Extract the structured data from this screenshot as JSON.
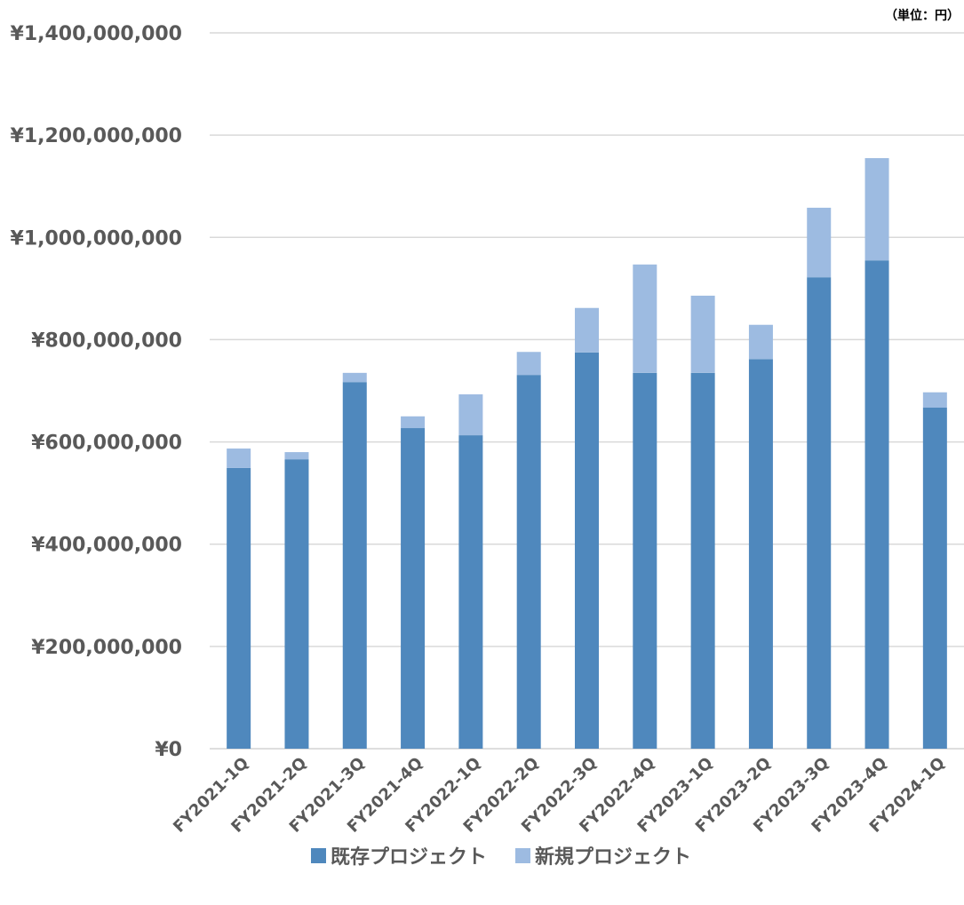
{
  "chart_data": {
    "type": "bar",
    "stacked": true,
    "unit_note": "（単位：円）",
    "categories": [
      "FY2021-1Q",
      "FY2021-2Q",
      "FY2021-3Q",
      "FY2021-4Q",
      "FY2022-1Q",
      "FY2022-2Q",
      "FY2022-3Q",
      "FY2022-4Q",
      "FY2023-1Q",
      "FY2023-2Q",
      "FY2023-3Q",
      "FY2023-4Q",
      "FY2024-1Q"
    ],
    "series": [
      {
        "name": "既存プロジェクト",
        "color": "#4F88BD",
        "values": [
          549000000,
          566000000,
          717000000,
          627000000,
          613000000,
          731000000,
          775000000,
          735000000,
          735000000,
          762000000,
          922000000,
          955000000,
          667000000
        ]
      },
      {
        "name": "新規プロジェクト",
        "color": "#9DBBE1",
        "values": [
          38000000,
          14000000,
          18000000,
          23000000,
          80000000,
          45000000,
          87000000,
          212000000,
          151000000,
          67000000,
          136000000,
          200000000,
          30000000
        ]
      }
    ],
    "ylim": [
      0,
      1400000000
    ],
    "y_ticks": [
      0,
      200000000,
      400000000,
      600000000,
      800000000,
      1000000000,
      1200000000,
      1400000000
    ],
    "y_tick_labels": [
      "¥0",
      "¥200,000,000",
      "¥400,000,000",
      "¥600,000,000",
      "¥800,000,000",
      "¥1,000,000,000",
      "¥1,200,000,000",
      "¥1,400,000,000"
    ],
    "grid": true,
    "legend_position": "bottom"
  }
}
